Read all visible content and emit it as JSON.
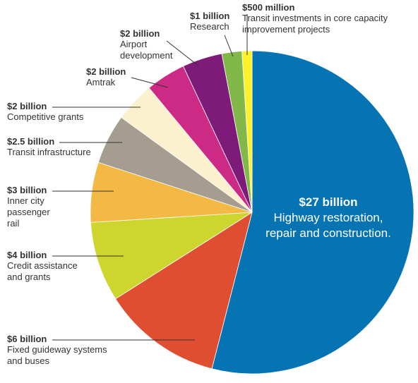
{
  "chart_data": {
    "type": "pie",
    "title": "",
    "unit": "billion USD",
    "slices": [
      {
        "amount_label": "$27 billion",
        "description": [
          "Highway restoration,",
          "repair and construction."
        ],
        "value": 27,
        "color": "#0673b2"
      },
      {
        "amount_label": "$6 billion",
        "description": [
          "Fixed guideway systems",
          "and buses"
        ],
        "value": 6,
        "color": "#e04e32"
      },
      {
        "amount_label": "$4 billion",
        "description": [
          "Credit assistance",
          "and grants"
        ],
        "value": 4,
        "color": "#cdd52e"
      },
      {
        "amount_label": "$3 billion",
        "description": [
          "Inner city",
          "passenger",
          "rail"
        ],
        "value": 3,
        "color": "#f4b845"
      },
      {
        "amount_label": "$2.5 billion",
        "description": [
          "Transit infrastructure"
        ],
        "value": 2.5,
        "color": "#a59d90"
      },
      {
        "amount_label": "$2 billion",
        "description": [
          "Competitive grants"
        ],
        "value": 2,
        "color": "#fcf1cf"
      },
      {
        "amount_label": "$2 billion",
        "description": [
          "Amtrak"
        ],
        "value": 2,
        "color": "#cc2a84"
      },
      {
        "amount_label": "$2 billion",
        "description": [
          "Airport",
          "development"
        ],
        "value": 2,
        "color": "#7e1a78"
      },
      {
        "amount_label": "$1 billion",
        "description": [
          "Research"
        ],
        "value": 1,
        "color": "#82b84a"
      },
      {
        "amount_label": "$500 million",
        "description": [
          "Transit investments in core capacity",
          "improvement projects"
        ],
        "value": 0.5,
        "color": "#fdf12a"
      }
    ]
  }
}
